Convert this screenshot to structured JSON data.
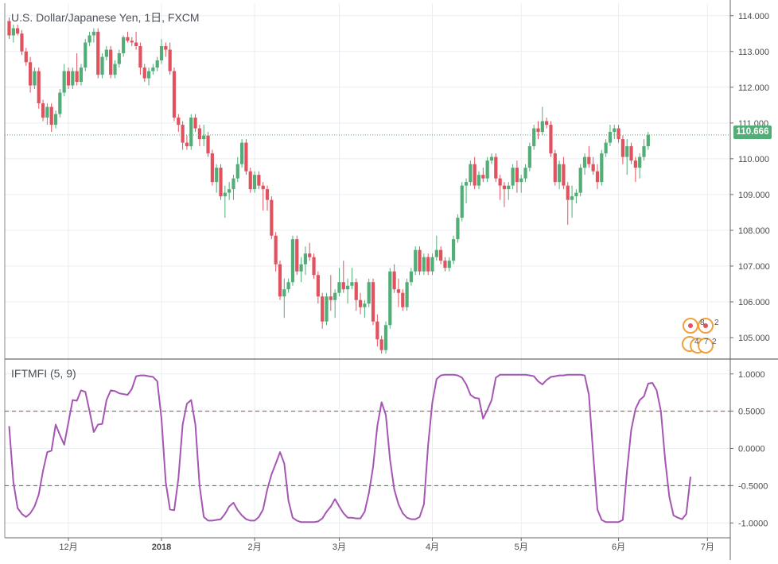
{
  "window": {
    "symbol_title": "U.S. Dollar/Japanese Yen, 1日, FXCM",
    "indicator_title": "IFTMFI (5, 9)",
    "last_price_label": "110.666",
    "event_badge_texts": [
      "8",
      "2",
      "4",
      "7",
      "2"
    ]
  },
  "colors": {
    "up": "#52ad76",
    "down": "#e0525e",
    "indicator": "#a556b2",
    "overbought_line": "#c0392b",
    "oversold_line": "#2e7d32",
    "last_price_line": "#4caf7a",
    "grid": "#e9eef2",
    "axis_text": "#4a4a4a",
    "badge": "#f2a03d"
  },
  "chart_data": [
    {
      "type": "candlestick",
      "title": "U.S. Dollar/Japanese Yen, 1日, FXCM",
      "ylim": [
        104.4,
        114.35
      ],
      "y_ticks": [
        105,
        106,
        107,
        108,
        109,
        110,
        111,
        112,
        113,
        114
      ],
      "y_tick_labels": [
        "105.000",
        "106.000",
        "107.000",
        "108.000",
        "109.000",
        "110.000",
        "111.000",
        "112.000",
        "113.000",
        "114.000"
      ],
      "x_ticks": [
        {
          "label": "12月",
          "index": 14
        },
        {
          "label": "2018",
          "index": 36
        },
        {
          "label": "2月",
          "index": 58
        },
        {
          "label": "3月",
          "index": 78
        },
        {
          "label": "4月",
          "index": 100
        },
        {
          "label": "5月",
          "index": 121
        },
        {
          "label": "6月",
          "index": 144
        },
        {
          "label": "7月",
          "index": 165
        }
      ],
      "last_price": 110.666,
      "ohlc": [
        [
          113.85,
          113.95,
          113.35,
          113.45
        ],
        [
          113.45,
          113.75,
          113.25,
          113.65
        ],
        [
          113.65,
          113.75,
          113.45,
          113.5
        ],
        [
          113.5,
          113.6,
          112.9,
          113.0
        ],
        [
          113.0,
          113.1,
          112.6,
          112.7
        ],
        [
          112.7,
          112.85,
          111.85,
          112.05
        ],
        [
          112.05,
          112.55,
          111.95,
          112.45
        ],
        [
          112.45,
          112.55,
          111.4,
          111.55
        ],
        [
          111.55,
          111.65,
          111.05,
          111.15
        ],
        [
          111.15,
          111.55,
          110.95,
          111.45
        ],
        [
          111.45,
          111.55,
          110.75,
          110.95
        ],
        [
          110.95,
          111.35,
          110.85,
          111.25
        ],
        [
          111.25,
          111.95,
          111.15,
          111.85
        ],
        [
          111.85,
          112.65,
          111.75,
          112.45
        ],
        [
          112.45,
          112.55,
          111.95,
          112.05
        ],
        [
          112.05,
          112.55,
          111.95,
          112.45
        ],
        [
          112.45,
          112.95,
          112.05,
          112.15
        ],
        [
          112.15,
          112.65,
          112.05,
          112.55
        ],
        [
          112.55,
          113.35,
          112.45,
          113.25
        ],
        [
          113.25,
          113.55,
          113.15,
          113.45
        ],
        [
          113.45,
          113.65,
          113.25,
          113.55
        ],
        [
          113.55,
          113.65,
          112.25,
          112.35
        ],
        [
          112.35,
          112.95,
          112.25,
          112.85
        ],
        [
          112.85,
          113.15,
          112.75,
          113.05
        ],
        [
          113.05,
          113.15,
          112.25,
          112.35
        ],
        [
          112.35,
          112.75,
          112.25,
          112.65
        ],
        [
          112.65,
          113.05,
          112.55,
          112.95
        ],
        [
          112.95,
          113.45,
          112.85,
          113.4
        ],
        [
          113.4,
          113.55,
          113.25,
          113.3
        ],
        [
          113.3,
          113.4,
          113.15,
          113.25
        ],
        [
          113.25,
          113.55,
          113.05,
          113.15
        ],
        [
          113.15,
          113.25,
          112.35,
          112.55
        ],
        [
          112.55,
          112.65,
          112.15,
          112.25
        ],
        [
          112.25,
          112.55,
          112.05,
          112.45
        ],
        [
          112.45,
          112.65,
          112.35,
          112.55
        ],
        [
          112.55,
          112.85,
          112.45,
          112.75
        ],
        [
          112.75,
          113.35,
          112.65,
          113.15
        ],
        [
          113.15,
          113.25,
          112.85,
          113.05
        ],
        [
          113.05,
          113.25,
          112.35,
          112.45
        ],
        [
          112.45,
          112.55,
          111.05,
          111.15
        ],
        [
          111.15,
          111.25,
          110.75,
          110.95
        ],
        [
          110.95,
          111.05,
          110.25,
          110.45
        ],
        [
          110.45,
          110.65,
          110.25,
          110.35
        ],
        [
          110.35,
          111.25,
          110.25,
          111.15
        ],
        [
          111.15,
          111.25,
          110.75,
          110.85
        ],
        [
          110.85,
          110.95,
          110.35,
          110.55
        ],
        [
          110.55,
          110.95,
          110.35,
          110.65
        ],
        [
          110.65,
          110.75,
          110.05,
          110.15
        ],
        [
          110.15,
          110.25,
          109.25,
          109.35
        ],
        [
          109.35,
          109.85,
          109.05,
          109.75
        ],
        [
          109.75,
          109.85,
          108.85,
          108.95
        ],
        [
          108.95,
          109.25,
          108.35,
          109.05
        ],
        [
          109.05,
          109.35,
          108.85,
          109.15
        ],
        [
          109.15,
          109.55,
          108.85,
          109.45
        ],
        [
          109.45,
          110.05,
          109.35,
          109.85
        ],
        [
          109.85,
          110.55,
          109.75,
          110.45
        ],
        [
          110.45,
          110.55,
          109.55,
          109.65
        ],
        [
          109.65,
          109.75,
          109.05,
          109.15
        ],
        [
          109.15,
          109.65,
          109.05,
          109.55
        ],
        [
          109.55,
          109.65,
          109.15,
          109.25
        ],
        [
          109.25,
          109.35,
          108.55,
          109.15
        ],
        [
          109.15,
          109.25,
          108.55,
          108.85
        ],
        [
          108.85,
          108.95,
          107.75,
          107.85
        ],
        [
          107.85,
          107.95,
          106.85,
          107.05
        ],
        [
          107.05,
          107.15,
          106.05,
          106.15
        ],
        [
          106.15,
          106.65,
          105.55,
          106.35
        ],
        [
          106.35,
          106.65,
          106.25,
          106.55
        ],
        [
          106.55,
          107.85,
          106.45,
          107.75
        ],
        [
          107.75,
          107.85,
          106.75,
          106.85
        ],
        [
          106.85,
          107.25,
          106.55,
          107.05
        ],
        [
          107.05,
          107.55,
          106.75,
          107.35
        ],
        [
          107.35,
          107.65,
          107.15,
          107.25
        ],
        [
          107.25,
          107.35,
          106.65,
          106.75
        ],
        [
          106.75,
          106.85,
          105.95,
          106.15
        ],
        [
          106.15,
          106.25,
          105.25,
          105.45
        ],
        [
          105.45,
          106.25,
          105.35,
          106.15
        ],
        [
          106.15,
          106.75,
          105.75,
          106.05
        ],
        [
          106.05,
          106.35,
          105.55,
          106.25
        ],
        [
          106.25,
          106.95,
          106.15,
          106.55
        ],
        [
          106.55,
          107.15,
          106.25,
          106.35
        ],
        [
          106.35,
          106.65,
          105.95,
          106.45
        ],
        [
          106.45,
          106.95,
          106.35,
          106.55
        ],
        [
          106.55,
          106.65,
          105.75,
          106.05
        ],
        [
          106.05,
          106.25,
          105.65,
          105.85
        ],
        [
          105.85,
          106.05,
          105.55,
          105.95
        ],
        [
          105.95,
          106.65,
          105.85,
          106.55
        ],
        [
          106.55,
          106.65,
          105.35,
          105.45
        ],
        [
          105.45,
          105.65,
          104.75,
          104.95
        ],
        [
          104.95,
          105.05,
          104.55,
          104.65
        ],
        [
          104.65,
          105.45,
          104.55,
          105.35
        ],
        [
          105.35,
          106.95,
          105.25,
          106.85
        ],
        [
          106.85,
          107.05,
          106.25,
          106.35
        ],
        [
          106.35,
          106.65,
          105.85,
          106.25
        ],
        [
          106.25,
          106.35,
          105.75,
          105.85
        ],
        [
          105.85,
          106.65,
          105.75,
          106.55
        ],
        [
          106.55,
          106.95,
          106.45,
          106.85
        ],
        [
          106.85,
          107.55,
          106.75,
          107.45
        ],
        [
          107.45,
          107.55,
          106.75,
          106.85
        ],
        [
          106.85,
          107.35,
          106.75,
          107.25
        ],
        [
          107.25,
          107.35,
          106.75,
          106.85
        ],
        [
          106.85,
          107.35,
          106.75,
          107.25
        ],
        [
          107.25,
          107.85,
          107.15,
          107.45
        ],
        [
          107.45,
          107.55,
          107.05,
          107.15
        ],
        [
          107.15,
          107.25,
          106.85,
          106.95
        ],
        [
          106.95,
          107.25,
          106.85,
          107.15
        ],
        [
          107.15,
          107.85,
          107.05,
          107.75
        ],
        [
          107.75,
          108.45,
          107.65,
          108.35
        ],
        [
          108.35,
          109.35,
          108.25,
          109.25
        ],
        [
          109.25,
          109.45,
          108.75,
          109.35
        ],
        [
          109.35,
          109.95,
          109.25,
          109.85
        ],
        [
          109.85,
          110.05,
          109.15,
          109.25
        ],
        [
          109.25,
          109.65,
          109.15,
          109.55
        ],
        [
          109.55,
          109.75,
          109.35,
          109.45
        ],
        [
          109.45,
          110.05,
          109.35,
          109.95
        ],
        [
          109.95,
          110.15,
          109.85,
          110.05
        ],
        [
          110.05,
          110.15,
          109.35,
          109.45
        ],
        [
          109.45,
          109.55,
          108.85,
          109.25
        ],
        [
          109.25,
          109.35,
          108.65,
          109.15
        ],
        [
          109.15,
          109.35,
          108.85,
          109.25
        ],
        [
          109.25,
          109.85,
          109.15,
          109.75
        ],
        [
          109.75,
          109.95,
          109.05,
          109.35
        ],
        [
          109.35,
          109.55,
          109.05,
          109.45
        ],
        [
          109.45,
          109.85,
          109.35,
          109.75
        ],
        [
          109.75,
          110.45,
          109.65,
          110.35
        ],
        [
          110.35,
          110.95,
          110.25,
          110.85
        ],
        [
          110.85,
          111.05,
          110.55,
          110.75
        ],
        [
          110.75,
          111.45,
          110.65,
          111.05
        ],
        [
          111.05,
          111.15,
          110.85,
          110.95
        ],
        [
          110.95,
          111.05,
          110.05,
          110.15
        ],
        [
          110.15,
          110.25,
          109.25,
          109.35
        ],
        [
          109.35,
          109.95,
          109.15,
          109.85
        ],
        [
          109.85,
          110.05,
          109.15,
          109.25
        ],
        [
          109.25,
          109.35,
          108.15,
          108.85
        ],
        [
          108.85,
          109.25,
          108.35,
          108.95
        ],
        [
          108.95,
          109.15,
          108.75,
          109.05
        ],
        [
          109.05,
          109.85,
          108.95,
          109.75
        ],
        [
          109.75,
          110.15,
          109.55,
          110.05
        ],
        [
          110.05,
          110.35,
          109.75,
          109.85
        ],
        [
          109.85,
          110.05,
          109.55,
          109.65
        ],
        [
          109.65,
          109.85,
          109.15,
          109.35
        ],
        [
          109.35,
          110.25,
          109.25,
          110.15
        ],
        [
          110.15,
          110.55,
          110.05,
          110.45
        ],
        [
          110.45,
          110.95,
          110.35,
          110.75
        ],
        [
          110.75,
          110.95,
          110.55,
          110.85
        ],
        [
          110.85,
          110.95,
          110.45,
          110.55
        ],
        [
          110.55,
          110.65,
          109.85,
          110.05
        ],
        [
          110.05,
          110.55,
          109.55,
          110.35
        ],
        [
          110.35,
          110.45,
          109.85,
          109.95
        ],
        [
          109.95,
          110.05,
          109.35,
          109.75
        ],
        [
          109.75,
          110.15,
          109.45,
          110.05
        ],
        [
          110.05,
          110.55,
          109.95,
          110.35
        ],
        [
          110.35,
          110.75,
          110.25,
          110.666
        ]
      ]
    },
    {
      "type": "line",
      "title": "IFTMFI (5, 9)",
      "ylim": [
        -1.2,
        1.2
      ],
      "y_ticks": [
        1,
        0.5,
        0,
        -0.5,
        -1
      ],
      "y_tick_labels": [
        "1.0000",
        "0.5000",
        "0.0000",
        "-0.5000",
        "-1.0000"
      ],
      "reference_lines": [
        0.5,
        -0.5
      ],
      "series": [
        {
          "values": [
            0.3,
            -0.45,
            -0.8,
            -0.88,
            -0.92,
            -0.87,
            -0.78,
            -0.62,
            -0.3,
            -0.05,
            -0.03,
            0.32,
            0.18,
            0.05,
            0.35,
            0.65,
            0.64,
            0.78,
            0.76,
            0.5,
            0.22,
            0.32,
            0.33,
            0.65,
            0.78,
            0.77,
            0.74,
            0.73,
            0.72,
            0.8,
            0.97,
            0.98,
            0.98,
            0.97,
            0.96,
            0.9,
            0.4,
            -0.45,
            -0.82,
            -0.83,
            -0.4,
            0.32,
            0.6,
            0.65,
            0.32,
            -0.5,
            -0.92,
            -0.97,
            -0.97,
            -0.96,
            -0.95,
            -0.88,
            -0.78,
            -0.73,
            -0.83,
            -0.9,
            -0.95,
            -0.97,
            -0.97,
            -0.92,
            -0.82,
            -0.55,
            -0.35,
            -0.2,
            -0.05,
            -0.2,
            -0.7,
            -0.93,
            -0.97,
            -0.99,
            -0.99,
            -0.99,
            -0.99,
            -0.98,
            -0.94,
            -0.85,
            -0.78,
            -0.68,
            -0.78,
            -0.87,
            -0.93,
            -0.93,
            -0.94,
            -0.94,
            -0.85,
            -0.6,
            -0.25,
            0.3,
            0.62,
            0.45,
            -0.15,
            -0.55,
            -0.75,
            -0.87,
            -0.93,
            -0.95,
            -0.95,
            -0.92,
            -0.75,
            0.05,
            0.62,
            0.93,
            0.98,
            0.99,
            0.99,
            0.99,
            0.98,
            0.95,
            0.86,
            0.72,
            0.68,
            0.67,
            0.4,
            0.52,
            0.65,
            0.95,
            0.99,
            0.99,
            0.99,
            0.99,
            0.99,
            0.99,
            0.99,
            0.98,
            0.97,
            0.9,
            0.86,
            0.92,
            0.96,
            0.97,
            0.98,
            0.98,
            0.99,
            0.99,
            0.99,
            0.99,
            0.98,
            0.72,
            -0.08,
            -0.82,
            -0.96,
            -0.99,
            -0.99,
            -0.99,
            -0.99,
            -0.96,
            -0.3,
            0.25,
            0.53,
            0.65,
            0.7,
            0.87,
            0.88,
            0.78,
            0.5,
            -0.15,
            -0.65,
            -0.9,
            -0.93,
            -0.95,
            -0.88,
            -0.38
          ]
        }
      ]
    }
  ]
}
